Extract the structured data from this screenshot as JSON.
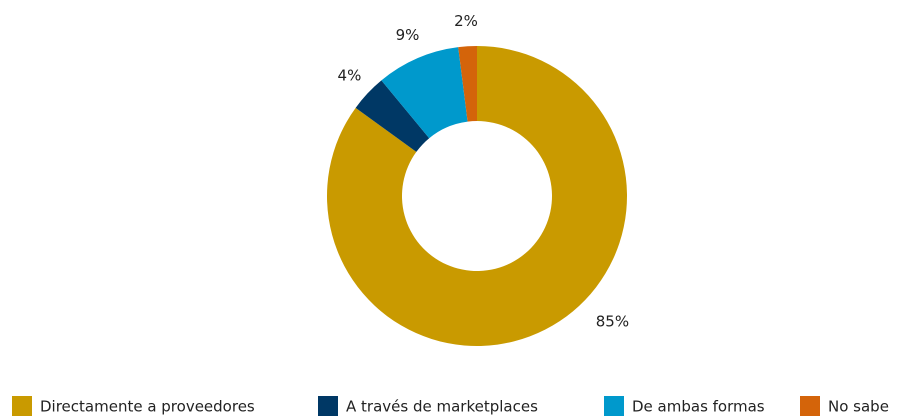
{
  "chart_data": {
    "type": "donut",
    "series": [
      {
        "name": "Directamente a proveedores",
        "color": "#c99a00",
        "values": [
          85
        ],
        "value_labels": [
          "85%"
        ]
      },
      {
        "name": "A través de marketplaces",
        "color": "#003865",
        "values": [
          4
        ],
        "value_labels": [
          "4%"
        ]
      },
      {
        "name": "De ambas formas",
        "color": "#0099cc",
        "values": [
          9
        ],
        "value_labels": [
          "9%"
        ]
      },
      {
        "name": "No sabe",
        "color": "#d4640a",
        "values": [
          2
        ],
        "value_labels": [
          "2%"
        ]
      }
    ],
    "legend": "bottom"
  }
}
